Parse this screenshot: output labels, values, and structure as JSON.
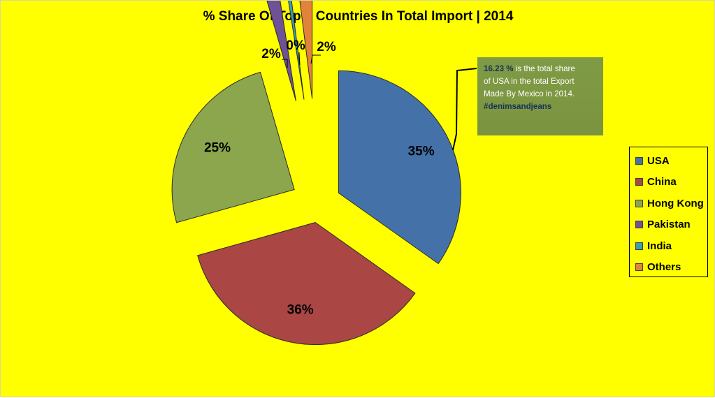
{
  "background_color": "#ffff00",
  "chart_data": {
    "type": "pie",
    "title": "% Share Of Top 5 Countries In Total Import | 2014",
    "exploded": true,
    "legend_position": "right",
    "slices": [
      {
        "label": "USA",
        "value": 35,
        "display": "35%",
        "color": "#4472a8"
      },
      {
        "label": "China",
        "value": 36,
        "display": "36%",
        "color": "#aa4644"
      },
      {
        "label": "Hong Kong",
        "value": 25,
        "display": "25%",
        "color": "#8ca64d"
      },
      {
        "label": "Pakistan",
        "value": 2,
        "display": "2%",
        "color": "#6f5195"
      },
      {
        "label": "India",
        "value": 0.5,
        "display": "0%",
        "color": "#3a9fb5"
      },
      {
        "label": "Others",
        "value": 2,
        "display": "2%",
        "color": "#e2833a"
      }
    ]
  },
  "callout": {
    "highlight": "16.23 %",
    "text_line1": " is the total share",
    "text_line2": "of USA in the total Export",
    "text_line3": "Made By Mexico in 2014.",
    "hashtag": "#denimsandjeans",
    "color": "#7f9b45"
  }
}
